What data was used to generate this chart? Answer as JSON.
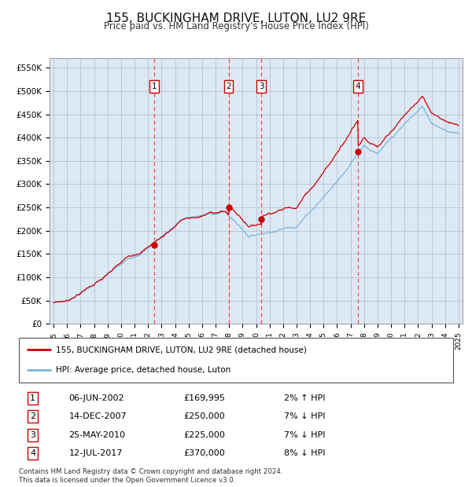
{
  "title": "155, BUCKINGHAM DRIVE, LUTON, LU2 9RE",
  "subtitle": "Price paid vs. HM Land Registry's House Price Index (HPI)",
  "background_color": "#dce9f5",
  "ylim": [
    0,
    570000
  ],
  "yticks": [
    0,
    50000,
    100000,
    150000,
    200000,
    250000,
    300000,
    350000,
    400000,
    450000,
    500000,
    550000
  ],
  "ytick_labels": [
    "£0",
    "£50K",
    "£100K",
    "£150K",
    "£200K",
    "£250K",
    "£300K",
    "£350K",
    "£400K",
    "£450K",
    "£500K",
    "£550K"
  ],
  "sale_dates": [
    2002.44,
    2007.96,
    2010.4,
    2017.54
  ],
  "sale_prices": [
    169995,
    250000,
    225000,
    370000
  ],
  "sale_labels": [
    "1",
    "2",
    "3",
    "4"
  ],
  "hpi_color": "#7ab3e0",
  "price_color": "#cc0000",
  "marker_color": "#cc0000",
  "dashed_color": "#ff4444",
  "legend_entries": [
    "155, BUCKINGHAM DRIVE, LUTON, LU2 9RE (detached house)",
    "HPI: Average price, detached house, Luton"
  ],
  "table_rows": [
    [
      "1",
      "06-JUN-2002",
      "£169,995",
      "2% ↑ HPI"
    ],
    [
      "2",
      "14-DEC-2007",
      "£250,000",
      "7% ↓ HPI"
    ],
    [
      "3",
      "25-MAY-2010",
      "£225,000",
      "7% ↓ HPI"
    ],
    [
      "4",
      "12-JUL-2017",
      "£370,000",
      "8% ↓ HPI"
    ]
  ],
  "footnote": "Contains HM Land Registry data © Crown copyright and database right 2024.\nThis data is licensed under the Open Government Licence v3.0.",
  "x_start_year": 1995,
  "x_end_year": 2025
}
